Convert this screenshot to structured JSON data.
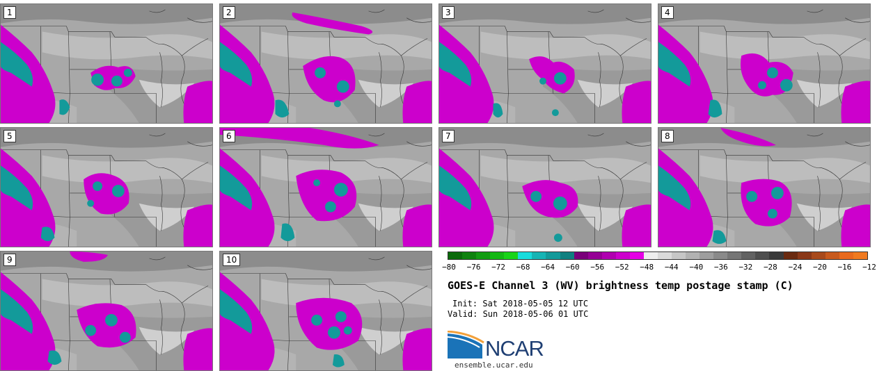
{
  "panels": [
    {
      "label": "1"
    },
    {
      "label": "2"
    },
    {
      "label": "3"
    },
    {
      "label": "4"
    },
    {
      "label": "5"
    },
    {
      "label": "6"
    },
    {
      "label": "7"
    },
    {
      "label": "8"
    },
    {
      "label": "9"
    },
    {
      "label": "10"
    }
  ],
  "colorbar": {
    "colors": [
      "#0a6a0a",
      "#0e820e",
      "#129c12",
      "#14b814",
      "#18d418",
      "#18dcdc",
      "#16b4b4",
      "#139a9a",
      "#108080",
      "#7a007a",
      "#950095",
      "#b000b0",
      "#cc00cc",
      "#e600e6",
      "#eeeeee",
      "#dadada",
      "#c6c6c6",
      "#b2b2b2",
      "#9e9e9e",
      "#8a8a8a",
      "#767676",
      "#626262",
      "#4e4e4e",
      "#3a3a3a",
      "#6a2a10",
      "#8a3818",
      "#a84a1c",
      "#c85a1e",
      "#e86a1e",
      "#f07a20"
    ],
    "ticks": [
      "−80",
      "−76",
      "−72",
      "−68",
      "−64",
      "−60",
      "−56",
      "−52",
      "−48",
      "−44",
      "−40",
      "−36",
      "−32",
      "−28",
      "−24",
      "−20",
      "−16",
      "−12"
    ]
  },
  "title": "GOES-E Channel 3 (WV) brightness temp postage stamp (C)",
  "init_text": "Init: Sat 2018-05-05 12 UTC",
  "valid_text": "Valid: Sun 2018-05-06 01 UTC",
  "logo_text": "NCAR",
  "site_text": "ensemble.ucar.edu"
}
